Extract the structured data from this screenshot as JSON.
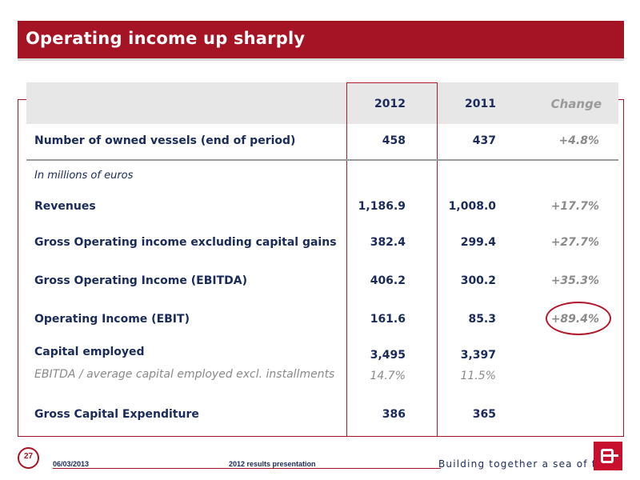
{
  "title": "Operating income up sharply",
  "table": {
    "headers": {
      "col2012": "2012",
      "col2011": "2011",
      "change": "Change"
    },
    "rows": [
      {
        "label": "Number of owned vessels  (end of period)",
        "v2012": "458",
        "v2011": "437",
        "change": "+4.8%"
      },
      {
        "label": "In millions of euros"
      },
      {
        "label": "Revenues",
        "v2012": "1,186.9",
        "v2011": "1,008.0",
        "change": "+17.7%"
      },
      {
        "label": "Gross Operating income excluding capital gains",
        "v2012": "382.4",
        "v2011": "299.4",
        "change": "+27.7%"
      },
      {
        "label": "Gross Operating Income (EBITDA)",
        "v2012": "406.2",
        "v2011": "300.2",
        "change": "+35.3%"
      },
      {
        "label": "Operating Income (EBIT)",
        "v2012": "161.6",
        "v2011": "85.3",
        "change": "+89.4%"
      },
      {
        "label": "Capital employed",
        "v2012": "3,495",
        "v2011": "3,397"
      },
      {
        "label": "EBITDA / average capital employed excl. installments",
        "v2012": "14.7%",
        "v2011": "11.5%"
      },
      {
        "label": "Gross Capital Expenditure",
        "v2012": "386",
        "v2011": "365"
      }
    ]
  },
  "footer": {
    "page_number": "27",
    "date": "06/03/2013",
    "presentation": "2012 results presentation",
    "tagline": "Building together a sea of trust",
    "logo_letter": "B"
  },
  "colors": {
    "brand": "#a51424",
    "text": "#1a2a5a",
    "muted": "#8a8a8a",
    "header_band": "#e7e7e7"
  }
}
